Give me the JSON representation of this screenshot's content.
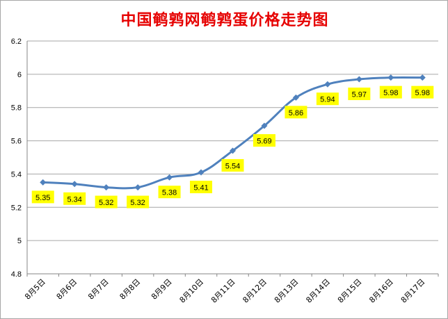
{
  "chart_data": {
    "type": "line",
    "title": "中国鹌鹑网鹌鹑蛋价格走势图",
    "categories": [
      "8月5日",
      "8月6日",
      "8月7日",
      "8月8日",
      "8月9日",
      "8月10日",
      "8月11日",
      "8月12日",
      "8月13日",
      "8月14日",
      "8月15日",
      "8月16日",
      "8月17日"
    ],
    "series": [
      {
        "values": [
          5.35,
          5.34,
          5.32,
          5.32,
          5.38,
          5.41,
          5.54,
          5.69,
          5.86,
          5.94,
          5.97,
          5.98,
          5.98
        ]
      }
    ],
    "data_labels": [
      "5.35",
      "5.34",
      "5.32",
      "5.32",
      "5.38",
      "5.41",
      "5.54",
      "5.69",
      "5.86",
      "5.94",
      "5.97",
      "5.98",
      "5.98"
    ],
    "y_ticks": [
      "4.8",
      "5",
      "5.2",
      "5.4",
      "5.6",
      "5.8",
      "6",
      "6.2"
    ],
    "ylim": [
      4.8,
      6.2
    ],
    "grid": true,
    "legend": "none",
    "colors": {
      "line": "#4f81bd",
      "label_bg": "#ffff00",
      "title": "#e60000",
      "grid": "#a6a6a6"
    }
  }
}
